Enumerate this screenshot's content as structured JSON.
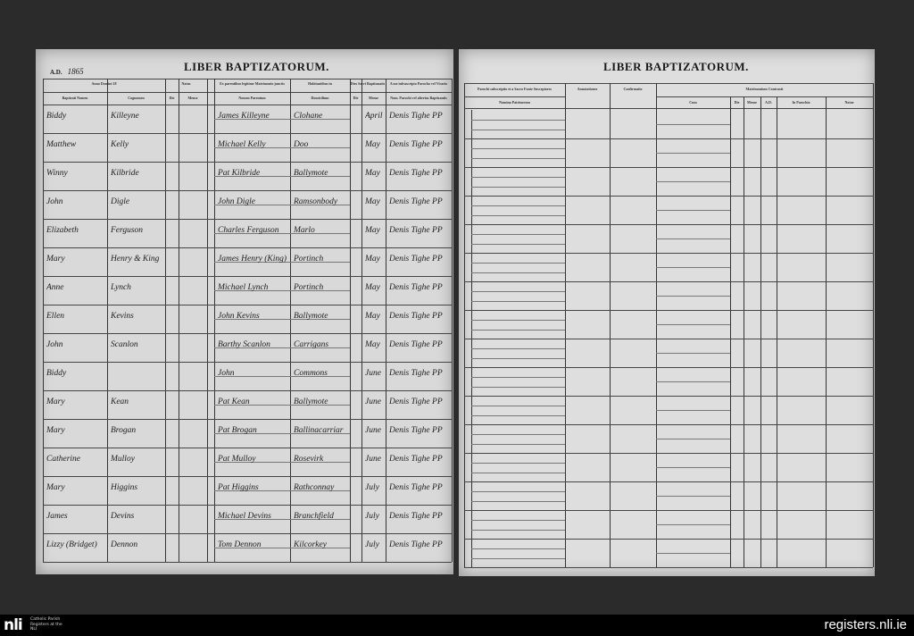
{
  "left_page": {
    "year_label": "A.D.",
    "year": "1865",
    "title": "LIBER BAPTIZATORUM.",
    "headers_top": [
      "Anno Domini 18",
      "Natus",
      "Ex parentibus legitime Matrimonio junctis",
      "Habitantibus in",
      "Dies Sacri Baptismatis",
      "A me infrascripto Parocho vel Vicario"
    ],
    "headers": [
      "Baptizati Nomen",
      "Cognomen",
      "Die",
      "Mense",
      "Nomen Parentum",
      "Domicilium",
      "Die",
      "Mense",
      "Nom. Parochi vel alterius Baptizantis"
    ],
    "rows": [
      [
        "Biddy",
        "Killeyne",
        "",
        "",
        "James Killeyne",
        "Clohane",
        "",
        "April",
        "Denis Tighe PP"
      ],
      [
        "Matthew",
        "Kelly",
        "",
        "",
        "Michael Kelly",
        "Doo",
        "",
        "May",
        "Denis Tighe PP"
      ],
      [
        "Winny",
        "Kilbride",
        "",
        "",
        "Pat Kilbride",
        "Ballymote",
        "",
        "May",
        "Denis Tighe PP"
      ],
      [
        "John",
        "Digle",
        "",
        "",
        "John Digle",
        "Ramsonbody",
        "",
        "May",
        "Denis Tighe PP"
      ],
      [
        "Elizabeth",
        "Ferguson",
        "",
        "",
        "Charles Ferguson",
        "Marlo",
        "",
        "May",
        "Denis Tighe PP"
      ],
      [
        "Mary",
        "Henry & King",
        "",
        "",
        "James Henry (King)",
        "Portinch",
        "",
        "May",
        "Denis Tighe PP"
      ],
      [
        "Anne",
        "Lynch",
        "",
        "",
        "Michael Lynch",
        "Portinch",
        "",
        "May",
        "Denis Tighe PP"
      ],
      [
        "Ellen",
        "Kevins",
        "",
        "",
        "John Kevins",
        "Ballymote",
        "",
        "May",
        "Denis Tighe PP"
      ],
      [
        "John",
        "Scanlon",
        "",
        "",
        "Barthy Scanlon",
        "Carrigans",
        "",
        "May",
        "Denis Tighe PP"
      ],
      [
        "Biddy",
        "",
        "",
        "",
        "John",
        "Commons",
        "",
        "June",
        "Denis Tighe PP"
      ],
      [
        "Mary",
        "Kean",
        "",
        "",
        "Pat Kean",
        "Ballymote",
        "",
        "June",
        "Denis Tighe PP"
      ],
      [
        "Mary",
        "Brogan",
        "",
        "",
        "Pat Brogan",
        "Ballinacarriar",
        "",
        "June",
        "Denis Tighe PP"
      ],
      [
        "Catherine",
        "Mulloy",
        "",
        "",
        "Pat Mulloy",
        "Rosevirk",
        "",
        "June",
        "Denis Tighe PP"
      ],
      [
        "Mary",
        "Higgins",
        "",
        "",
        "Pat Higgins",
        "Rathconnay",
        "",
        "July",
        "Denis Tighe PP"
      ],
      [
        "James",
        "Devins",
        "",
        "",
        "Michael Devins",
        "Branchfield",
        "",
        "July",
        "Denis Tighe PP"
      ],
      [
        "Lizzy (Bridget)",
        "Dennon",
        "",
        "",
        "Tom Dennon",
        "Kilcorkey",
        "",
        "July",
        "Denis Tighe PP"
      ]
    ]
  },
  "right_page": {
    "title": "LIBER BAPTIZATORUM.",
    "headers_top": [
      "Parochi subscriptio et a Sacro Fonte Susceptores",
      "Annotationes",
      "Confirmatio",
      "Matrimonium Contraxit"
    ],
    "headers": [
      "Nomina Patrinorum",
      "",
      "",
      "Cum",
      "Die",
      "Mense",
      "A.D.",
      "In Parochia",
      "Notae"
    ]
  },
  "footer": {
    "logo": "nli",
    "logo_caption": "Catholic Parish Registers at the NLI",
    "site": "registers.nli.ie"
  }
}
